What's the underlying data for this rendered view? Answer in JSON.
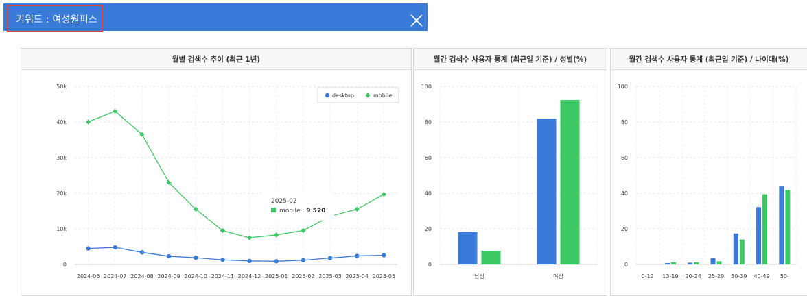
{
  "header": {
    "keyword_label": "키워드 : 여성원피스",
    "close_icon": "close-icon",
    "colors": {
      "bar": "#3a7bd9",
      "highlight": "#e0453a"
    }
  },
  "colors": {
    "desktop": "#3a7bd9",
    "mobile": "#3cc865"
  },
  "panels": {
    "trend": {
      "title": "월별 검색수 추이 (최근 1년)"
    },
    "gender": {
      "title": "월간 검색수 사용자 통계 (최근일 기준) / 성별(%)"
    },
    "age": {
      "title": "월간 검색수 사용자 통계 (최근일 기준) / 나이대(%)"
    }
  },
  "chart_data": [
    {
      "type": "line",
      "x": [
        "2024-06",
        "2024-07",
        "2024-08",
        "2024-09",
        "2024-10",
        "2024-11",
        "2024-12",
        "2025-01",
        "2025-02",
        "2025-03",
        "2025-04",
        "2025-05"
      ],
      "yticks": [
        "0",
        "10k",
        "20k",
        "30k",
        "40k",
        "50k"
      ],
      "ylim": [
        0,
        50000
      ],
      "grid": true,
      "legend_position": "top-right",
      "series": [
        {
          "name": "desktop",
          "values": [
            4500,
            4800,
            3400,
            2300,
            1900,
            1300,
            1000,
            900,
            1200,
            1800,
            2400,
            2600
          ]
        },
        {
          "name": "mobile",
          "values": [
            40000,
            43000,
            36500,
            23000,
            15500,
            9500,
            7500,
            8300,
            9520,
            13500,
            15500,
            19700
          ]
        }
      ],
      "tooltip": {
        "title": "2025-02",
        "series": "mobile",
        "sep": " : ",
        "value": "9 520"
      }
    },
    {
      "type": "bar",
      "categories": [
        "남성",
        "여성"
      ],
      "yticks": [
        "0",
        "20",
        "40",
        "60",
        "80",
        "100"
      ],
      "ylim": [
        0,
        100
      ],
      "grid": true,
      "series": [
        {
          "values": [
            18.2,
            81.8
          ]
        },
        {
          "values": [
            7.7,
            92.3
          ]
        }
      ]
    },
    {
      "type": "bar",
      "categories": [
        "0-12",
        "13-19",
        "20-24",
        "25-29",
        "30-39",
        "40-49",
        "50-"
      ],
      "yticks": [
        "0",
        "20",
        "40",
        "60",
        "80",
        "100"
      ],
      "ylim": [
        0,
        100
      ],
      "grid": true,
      "series": [
        {
          "values": [
            0,
            0.8,
            1.0,
            3.6,
            17.4,
            32.2,
            43.8
          ]
        },
        {
          "values": [
            0,
            1.2,
            1.2,
            1.8,
            14.0,
            39.4,
            41.9
          ]
        }
      ]
    }
  ]
}
